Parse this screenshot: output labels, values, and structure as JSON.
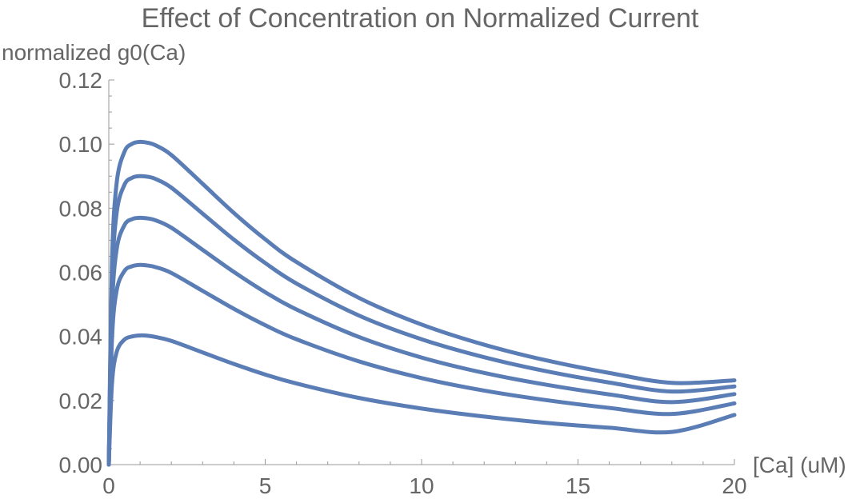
{
  "chart_data": {
    "type": "line",
    "title": "Effect of Concentration on Normalized Current",
    "xlabel": "[Ca] (uM)",
    "ylabel": "normalized g0(Ca)",
    "xlim": [
      0,
      20
    ],
    "ylim": [
      0,
      0.12
    ],
    "x_ticks": [
      "0",
      "5",
      "10",
      "15",
      "20"
    ],
    "y_ticks": [
      "0.00",
      "0.02",
      "0.04",
      "0.06",
      "0.08",
      "0.10",
      "0.12"
    ],
    "grid": false,
    "legend": "none",
    "color": "#5b7db5",
    "series": [
      {
        "x": [
          0,
          0.1,
          0.25,
          0.5,
          0.75,
          1.0,
          1.25,
          1.5,
          2,
          3,
          4,
          5,
          6,
          8,
          10,
          12,
          14,
          16,
          18,
          20
        ],
        "values": [
          0,
          0.0625,
          0.0878,
          0.0976,
          0.1001,
          0.1007,
          0.1004,
          0.0996,
          0.0966,
          0.0876,
          0.0785,
          0.0703,
          0.0632,
          0.052,
          0.0437,
          0.0374,
          0.0325,
          0.0286,
          0.0255,
          0.0263
        ]
      },
      {
        "x": [
          0,
          0.1,
          0.25,
          0.5,
          0.75,
          1.0,
          1.25,
          1.5,
          2,
          3,
          4,
          5,
          6,
          8,
          10,
          12,
          14,
          16,
          18,
          20
        ],
        "values": [
          0,
          0.0559,
          0.0785,
          0.0873,
          0.0895,
          0.09,
          0.0898,
          0.0891,
          0.0864,
          0.0783,
          0.0702,
          0.0629,
          0.0565,
          0.0465,
          0.0391,
          0.0335,
          0.0291,
          0.0256,
          0.0228,
          0.0244
        ]
      },
      {
        "x": [
          0,
          0.1,
          0.25,
          0.5,
          0.75,
          1.0,
          1.25,
          1.5,
          2,
          3,
          4,
          5,
          6,
          8,
          10,
          12,
          14,
          16,
          18,
          20
        ],
        "values": [
          0,
          0.0478,
          0.0671,
          0.0747,
          0.0766,
          0.077,
          0.0768,
          0.0762,
          0.0739,
          0.067,
          0.0601,
          0.0538,
          0.0484,
          0.0398,
          0.0334,
          0.0286,
          0.0249,
          0.0219,
          0.0195,
          0.022
        ]
      },
      {
        "x": [
          0,
          0.1,
          0.25,
          0.5,
          0.75,
          1.0,
          1.25,
          1.5,
          2,
          3,
          4,
          5,
          6,
          8,
          10,
          12,
          14,
          16,
          18,
          20
        ],
        "values": [
          0,
          0.0387,
          0.0543,
          0.0604,
          0.0619,
          0.0623,
          0.0621,
          0.0616,
          0.0598,
          0.0542,
          0.0486,
          0.0435,
          0.0391,
          0.0322,
          0.027,
          0.0231,
          0.0201,
          0.0177,
          0.0158,
          0.0191
        ]
      },
      {
        "x": [
          0,
          0.1,
          0.25,
          0.5,
          0.75,
          1.0,
          1.25,
          1.5,
          2,
          3,
          4,
          5,
          6,
          8,
          10,
          12,
          14,
          16,
          18,
          20
        ],
        "values": [
          0,
          0.025,
          0.0351,
          0.039,
          0.04,
          0.0403,
          0.0402,
          0.0398,
          0.0386,
          0.035,
          0.0314,
          0.0281,
          0.0253,
          0.0208,
          0.0175,
          0.015,
          0.013,
          0.0115,
          0.0102,
          0.0155
        ]
      }
    ]
  }
}
